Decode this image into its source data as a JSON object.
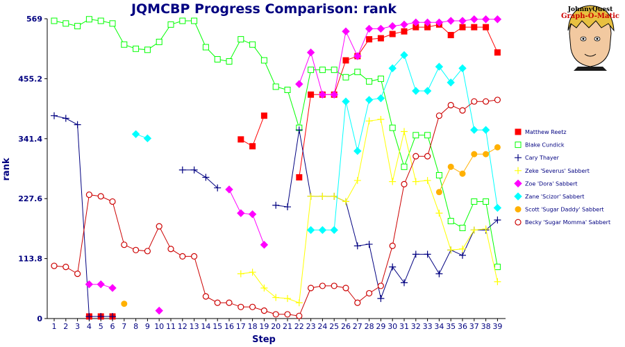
{
  "chart_data": {
    "type": "line",
    "title": "JQMCBP Progress Comparison: rank",
    "xlabel": "Step",
    "ylabel": "rank",
    "x": [
      1,
      2,
      3,
      4,
      5,
      6,
      7,
      8,
      9,
      10,
      11,
      12,
      13,
      14,
      15,
      16,
      17,
      18,
      19,
      20,
      21,
      22,
      23,
      24,
      25,
      26,
      27,
      28,
      29,
      30,
      31,
      32,
      33,
      34,
      35,
      36,
      37,
      38,
      39
    ],
    "ylim": [
      0,
      569
    ],
    "yticks": [
      "0",
      "113.8",
      "227.6",
      "341.4",
      "455.2",
      "569"
    ],
    "ytick_values": [
      0,
      113.8,
      227.6,
      341.4,
      455.2,
      569
    ],
    "grid": false,
    "legend_position": "right",
    "series": [
      {
        "name": "Matthew Reetz",
        "color": "#ff0000",
        "marker": "filled-square",
        "values": [
          null,
          null,
          null,
          4,
          4,
          4,
          null,
          null,
          null,
          null,
          null,
          null,
          null,
          null,
          null,
          null,
          340,
          327,
          385,
          null,
          null,
          268,
          425,
          425,
          425,
          490,
          498,
          530,
          532,
          540,
          545,
          553,
          553,
          558,
          538,
          553,
          553,
          553,
          505
        ]
      },
      {
        "name": "Blake Cundick",
        "color": "#00ff00",
        "marker": "open-square",
        "values": [
          565,
          560,
          555,
          568,
          565,
          560,
          520,
          512,
          510,
          525,
          558,
          565,
          565,
          515,
          492,
          488,
          530,
          520,
          490,
          440,
          434,
          362,
          472,
          472,
          472,
          458,
          468,
          450,
          455,
          362,
          288,
          348,
          348,
          272,
          185,
          172,
          222,
          222,
          98
        ]
      },
      {
        "name": "Cary Thayer",
        "color": "#000080",
        "marker": "plus",
        "values": [
          385,
          380,
          368,
          4,
          4,
          4,
          null,
          null,
          null,
          null,
          null,
          282,
          282,
          268,
          248,
          null,
          null,
          null,
          null,
          215,
          212,
          358,
          232,
          232,
          232,
          222,
          138,
          141,
          38,
          98,
          68,
          122,
          122,
          85,
          130,
          120,
          168,
          168,
          187
        ]
      },
      {
        "name": "Zeke 'Severus' Sabbert",
        "color": "#ffff00",
        "marker": "plus",
        "values": [
          null,
          null,
          null,
          null,
          null,
          null,
          null,
          null,
          null,
          null,
          null,
          null,
          null,
          null,
          null,
          null,
          85,
          88,
          58,
          40,
          38,
          30,
          232,
          232,
          232,
          222,
          262,
          375,
          378,
          260,
          355,
          260,
          262,
          200,
          130,
          132,
          168,
          170,
          70
        ]
      },
      {
        "name": "Zoe 'Dora' Sabbert",
        "color": "#ff00ff",
        "marker": "diamond",
        "values": [
          null,
          null,
          null,
          65,
          65,
          58,
          null,
          null,
          null,
          15,
          null,
          null,
          null,
          null,
          null,
          245,
          200,
          198,
          140,
          null,
          null,
          445,
          505,
          425,
          425,
          545,
          498,
          550,
          550,
          555,
          558,
          562,
          562,
          562,
          565,
          565,
          568,
          568,
          568
        ]
      },
      {
        "name": "Zane 'Scizor' Sabbert",
        "color": "#00ffff",
        "marker": "diamond",
        "values": [
          null,
          null,
          null,
          null,
          null,
          null,
          null,
          350,
          342,
          null,
          null,
          null,
          null,
          null,
          null,
          null,
          null,
          null,
          null,
          null,
          null,
          null,
          168,
          168,
          168,
          412,
          318,
          415,
          418,
          475,
          500,
          432,
          432,
          478,
          448,
          475,
          358,
          358,
          210
        ]
      },
      {
        "name": "Scott 'Sugar Daddy' Sabbert",
        "color": "#ffb000",
        "marker": "filled-circle",
        "values": [
          null,
          null,
          null,
          null,
          null,
          null,
          28,
          null,
          null,
          null,
          null,
          null,
          null,
          null,
          null,
          null,
          null,
          null,
          null,
          null,
          null,
          null,
          null,
          null,
          null,
          null,
          null,
          null,
          null,
          null,
          null,
          null,
          null,
          240,
          288,
          275,
          312,
          312,
          325
        ]
      },
      {
        "name": "Becky 'Sugar Momma' Sabbert",
        "color": "#cc0000",
        "marker": "open-circle",
        "values": [
          100,
          98,
          85,
          235,
          232,
          222,
          140,
          130,
          128,
          175,
          132,
          118,
          118,
          42,
          30,
          30,
          22,
          22,
          15,
          8,
          8,
          5,
          58,
          62,
          62,
          58,
          30,
          48,
          62,
          138,
          255,
          308,
          308,
          385,
          405,
          395,
          412,
          412,
          415
        ]
      }
    ]
  },
  "legend_labels": [
    "Matthew Reetz",
    "Blake Cundick",
    "Cary Thayer",
    "Zeke 'Severus' Sabbert",
    "Zoe 'Dora' Sabbert",
    "Zane 'Scizor' Sabbert",
    "Scott 'Sugar Daddy' Sabbert",
    "Becky 'Sugar Momma' Sabbert"
  ],
  "logo": {
    "line1": "JohnnyQuest",
    "line2": "Graph-O-Matic",
    "icon": "johnny-quest-face-icon"
  }
}
